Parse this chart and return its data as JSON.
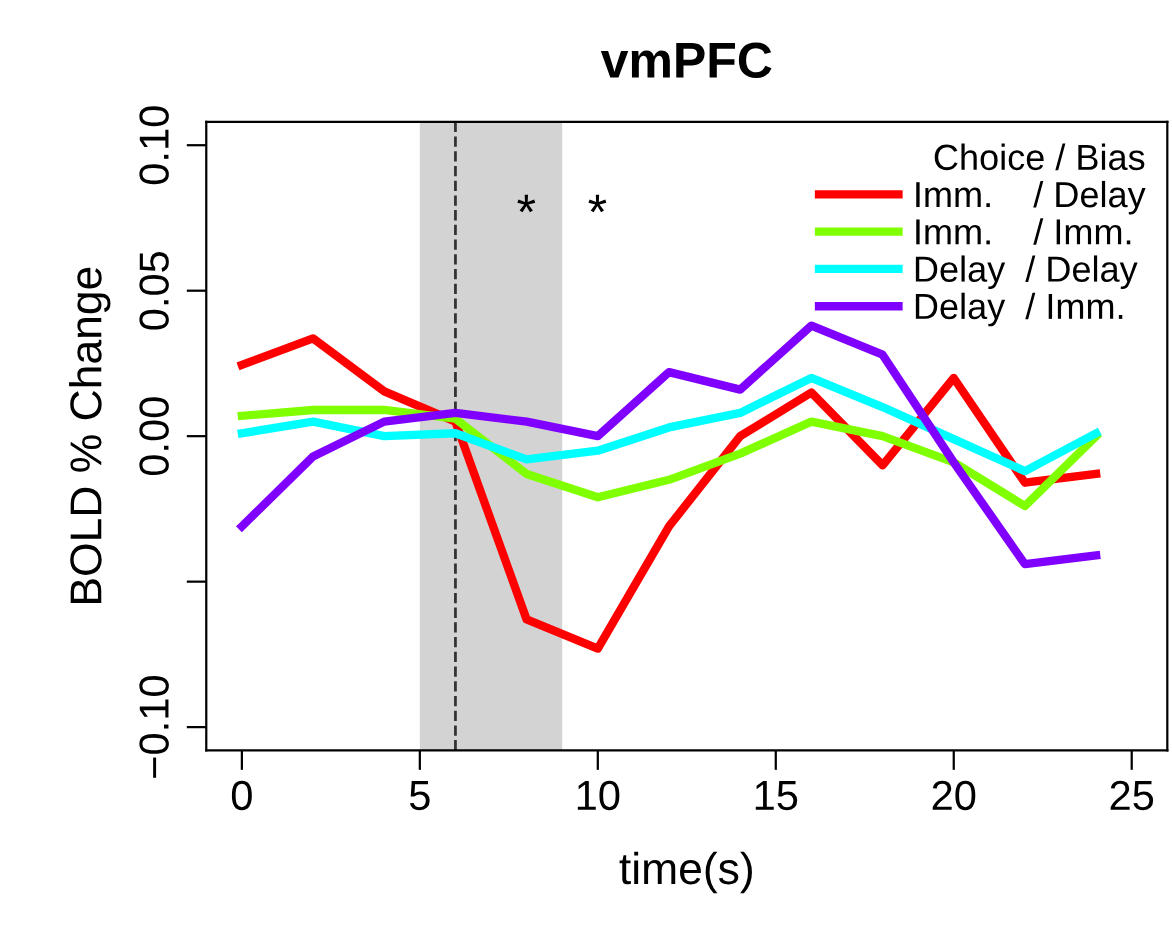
{
  "chart_data": {
    "type": "line",
    "title": "vmPFC",
    "xlabel": "time(s)",
    "ylabel": "BOLD % Change",
    "legend_title": "Choice / Bias",
    "x": [
      0,
      2,
      4,
      6,
      8,
      10,
      12,
      14,
      16,
      18,
      20,
      22,
      24
    ],
    "series": [
      {
        "name": "Imm.    / Delay",
        "color": "#ff0000",
        "values": [
          0.0245,
          0.0336,
          0.0154,
          0.005,
          -0.063,
          -0.073,
          -0.031,
          0,
          0.015,
          -0.01,
          0.02,
          -0.016,
          -0.013
        ]
      },
      {
        "name": "Imm.    / Imm.",
        "color": "#80ff00",
        "values": [
          0.007,
          0.009,
          0.009,
          0.006,
          -0.013,
          -0.021,
          -0.015,
          -0.006,
          0.005,
          0,
          -0.009,
          -0.024,
          0
        ]
      },
      {
        "name": "Delay  / Delay",
        "color": "#00ffff",
        "values": [
          0.001,
          0.005,
          0,
          0.001,
          -0.008,
          -0.005,
          0.003,
          0.008,
          0.02,
          0.01,
          -0.001,
          -0.012,
          0.001
        ]
      },
      {
        "name": "Delay  / Imm.",
        "color": "#8000ff",
        "values": [
          -0.031,
          -0.007,
          0.005,
          0.008,
          0.005,
          0,
          0.022,
          0.016,
          0.038,
          0.028,
          -0.009,
          -0.044,
          -0.041
        ]
      }
    ],
    "xlim": [
      -1,
      26
    ],
    "ylim": [
      -0.108,
      0.108
    ],
    "xticks": [
      0,
      5,
      10,
      15,
      20,
      25
    ],
    "yticks": [
      {
        "value": -0.1,
        "label": "−0.10"
      },
      {
        "value": -0.05,
        "label": null
      },
      {
        "value": 0,
        "label": "0.00"
      },
      {
        "value": 0.05,
        "label": "0.05"
      },
      {
        "value": 0.1,
        "label": "0.10"
      }
    ],
    "bands": [
      {
        "axis": "x",
        "from": 5,
        "to": 9,
        "color": "#d3d3d3"
      }
    ],
    "ref_lines": [
      {
        "axis": "x",
        "value": 6,
        "line_style": "dashed",
        "color": "#333333"
      }
    ],
    "annotations": [
      "*",
      "*"
    ],
    "legend": "top right",
    "grid": false,
    "marker": "none",
    "line_style": "solid"
  }
}
